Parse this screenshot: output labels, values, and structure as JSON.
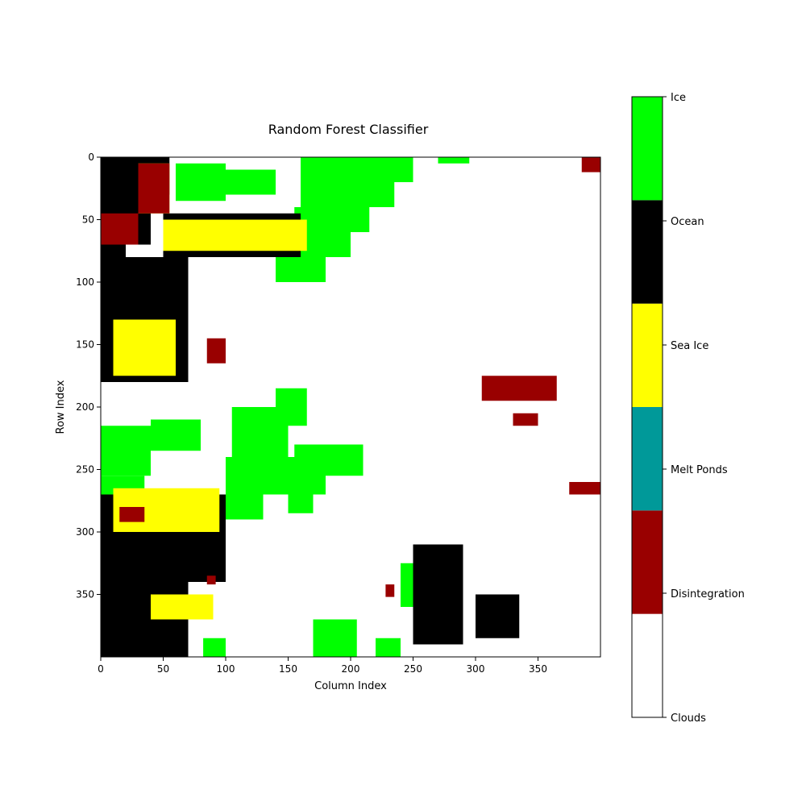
{
  "chart_data": {
    "type": "heatmap",
    "title": "Random Forest Classifier",
    "xlabel": "Column Index",
    "ylabel": "Row Index",
    "xlim": [
      0,
      400
    ],
    "ylim": [
      400,
      0
    ],
    "xticks": [
      0,
      50,
      100,
      150,
      200,
      250,
      300,
      350
    ],
    "yticks": [
      0,
      50,
      100,
      150,
      200,
      250,
      300,
      350
    ],
    "grid": false,
    "classes": [
      {
        "label": "Clouds",
        "color": "#ffffff"
      },
      {
        "label": "Disintegration",
        "color": "#990000"
      },
      {
        "label": "Melt Ponds",
        "color": "#009999"
      },
      {
        "label": "Sea Ice",
        "color": "#ffff00"
      },
      {
        "label": "Ocean",
        "color": "#000000"
      },
      {
        "label": "Ice",
        "color": "#00ff00"
      }
    ],
    "colorbar_ticks": [
      "Clouds",
      "Disintegration",
      "Melt Ponds",
      "Sea Ice",
      "Ocean",
      "Ice"
    ],
    "regions": [
      {
        "class": "Ice",
        "x": [
          160,
          250
        ],
        "y": [
          0,
          20
        ]
      },
      {
        "class": "Ice",
        "x": [
          160,
          235
        ],
        "y": [
          20,
          40
        ]
      },
      {
        "class": "Ice",
        "x": [
          155,
          215
        ],
        "y": [
          40,
          60
        ]
      },
      {
        "class": "Ice",
        "x": [
          150,
          200
        ],
        "y": [
          60,
          80
        ]
      },
      {
        "class": "Ice",
        "x": [
          140,
          180
        ],
        "y": [
          80,
          100
        ]
      },
      {
        "class": "Ice",
        "x": [
          60,
          100
        ],
        "y": [
          5,
          35
        ]
      },
      {
        "class": "Ice",
        "x": [
          100,
          140
        ],
        "y": [
          10,
          30
        ]
      },
      {
        "class": "Ice",
        "x": [
          270,
          295
        ],
        "y": [
          0,
          5
        ]
      },
      {
        "class": "Ice",
        "x": [
          0,
          40
        ],
        "y": [
          215,
          255
        ]
      },
      {
        "class": "Ice",
        "x": [
          40,
          80
        ],
        "y": [
          210,
          235
        ]
      },
      {
        "class": "Ice",
        "x": [
          0,
          35
        ],
        "y": [
          255,
          270
        ]
      },
      {
        "class": "Ice",
        "x": [
          105,
          150
        ],
        "y": [
          200,
          240
        ]
      },
      {
        "class": "Ice",
        "x": [
          140,
          165
        ],
        "y": [
          185,
          215
        ]
      },
      {
        "class": "Ice",
        "x": [
          100,
          180
        ],
        "y": [
          240,
          270
        ]
      },
      {
        "class": "Ice",
        "x": [
          155,
          210
        ],
        "y": [
          230,
          255
        ]
      },
      {
        "class": "Ice",
        "x": [
          100,
          130
        ],
        "y": [
          270,
          290
        ]
      },
      {
        "class": "Ice",
        "x": [
          150,
          170
        ],
        "y": [
          270,
          285
        ]
      },
      {
        "class": "Ice",
        "x": [
          170,
          205
        ],
        "y": [
          370,
          400
        ]
      },
      {
        "class": "Ice",
        "x": [
          220,
          240
        ],
        "y": [
          385,
          400
        ]
      },
      {
        "class": "Ice",
        "x": [
          240,
          255
        ],
        "y": [
          325,
          360
        ]
      },
      {
        "class": "Ice",
        "x": [
          82,
          100
        ],
        "y": [
          385,
          400
        ]
      },
      {
        "class": "Ocean",
        "x": [
          0,
          55
        ],
        "y": [
          0,
          30
        ]
      },
      {
        "class": "Ocean",
        "x": [
          0,
          40
        ],
        "y": [
          30,
          70
        ]
      },
      {
        "class": "Ocean",
        "x": [
          50,
          160
        ],
        "y": [
          45,
          80
        ]
      },
      {
        "class": "Ocean",
        "x": [
          0,
          20
        ],
        "y": [
          70,
          180
        ]
      },
      {
        "class": "Ocean",
        "x": [
          20,
          70
        ],
        "y": [
          80,
          180
        ]
      },
      {
        "class": "Ocean",
        "x": [
          0,
          100
        ],
        "y": [
          270,
          340
        ]
      },
      {
        "class": "Ocean",
        "x": [
          0,
          70
        ],
        "y": [
          340,
          400
        ]
      },
      {
        "class": "Ocean",
        "x": [
          250,
          290
        ],
        "y": [
          310,
          390
        ]
      },
      {
        "class": "Ocean",
        "x": [
          300,
          335
        ],
        "y": [
          350,
          385
        ]
      },
      {
        "class": "Sea Ice",
        "x": [
          30,
          55
        ],
        "y": [
          5,
          45
        ]
      },
      {
        "class": "Sea Ice",
        "x": [
          50,
          165
        ],
        "y": [
          50,
          75
        ]
      },
      {
        "class": "Sea Ice",
        "x": [
          10,
          60
        ],
        "y": [
          130,
          175
        ]
      },
      {
        "class": "Sea Ice",
        "x": [
          10,
          95
        ],
        "y": [
          265,
          300
        ]
      },
      {
        "class": "Sea Ice",
        "x": [
          40,
          90
        ],
        "y": [
          350,
          370
        ]
      },
      {
        "class": "Disintegration",
        "x": [
          30,
          55
        ],
        "y": [
          5,
          45
        ]
      },
      {
        "class": "Disintegration",
        "x": [
          0,
          30
        ],
        "y": [
          45,
          70
        ]
      },
      {
        "class": "Disintegration",
        "x": [
          85,
          100
        ],
        "y": [
          145,
          165
        ]
      },
      {
        "class": "Disintegration",
        "x": [
          305,
          365
        ],
        "y": [
          175,
          195
        ]
      },
      {
        "class": "Disintegration",
        "x": [
          330,
          350
        ],
        "y": [
          205,
          215
        ]
      },
      {
        "class": "Disintegration",
        "x": [
          375,
          400
        ],
        "y": [
          260,
          270
        ]
      },
      {
        "class": "Disintegration",
        "x": [
          385,
          400
        ],
        "y": [
          0,
          12
        ]
      },
      {
        "class": "Disintegration",
        "x": [
          15,
          35
        ],
        "y": [
          280,
          292
        ]
      },
      {
        "class": "Disintegration",
        "x": [
          85,
          92
        ],
        "y": [
          335,
          342
        ]
      },
      {
        "class": "Disintegration",
        "x": [
          228,
          235
        ],
        "y": [
          342,
          352
        ]
      }
    ]
  }
}
